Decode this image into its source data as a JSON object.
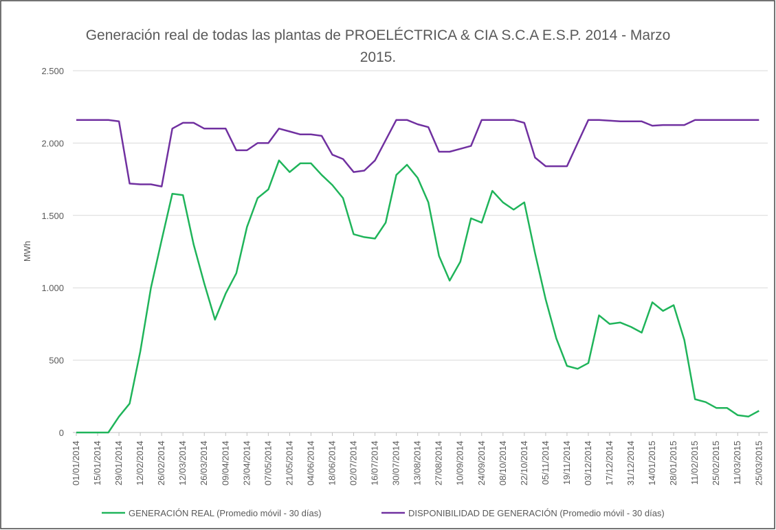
{
  "chart_data": {
    "type": "line",
    "title": "Generación real de todas las plantas de PROELÉCTRICA & CIA S.C.A E.S.P. 2014 - Marzo 2015.",
    "y_label": "MWh",
    "categories": [
      "01/01/2014",
      null,
      "15/01/2014",
      null,
      "29/01/2014",
      null,
      "12/02/2014",
      null,
      "26/02/2014",
      null,
      "12/03/2014",
      null,
      "26/03/2014",
      null,
      "09/04/2014",
      null,
      "23/04/2014",
      null,
      "07/05/2014",
      null,
      "21/05/2014",
      null,
      "04/06/2014",
      null,
      "18/06/2014",
      null,
      "02/07/2014",
      null,
      "16/07/2014",
      null,
      "30/07/2014",
      null,
      "13/08/2014",
      null,
      "27/08/2014",
      null,
      "10/09/2014",
      null,
      "24/09/2014",
      null,
      "08/10/2014",
      null,
      "22/10/2014",
      null,
      "05/11/2014",
      null,
      "19/11/2014",
      null,
      "03/12/2014",
      null,
      "17/12/2014",
      null,
      "31/12/2014",
      null,
      "14/01/2015",
      null,
      "28/01/2015",
      null,
      "11/02/2015",
      null,
      "25/02/2015",
      null,
      "11/03/2015",
      null,
      "25/03/2015"
    ],
    "series": [
      {
        "name": "GENERACIÓN REAL (Promedio móvil - 30 días)",
        "color": "#1fb45a",
        "values": [
          0,
          0,
          0,
          0,
          110,
          200,
          560,
          1000,
          1330,
          1650,
          1640,
          1300,
          1030,
          780,
          960,
          1100,
          1420,
          1620,
          1680,
          1880,
          1800,
          1860,
          1860,
          1780,
          1710,
          1620,
          1370,
          1350,
          1340,
          1450,
          1780,
          1850,
          1760,
          1590,
          1220,
          1050,
          1180,
          1480,
          1450,
          1670,
          1590,
          1540,
          1590,
          1240,
          920,
          650,
          460,
          440,
          480,
          810,
          750,
          760,
          730,
          690,
          900,
          840,
          880,
          640,
          230,
          210,
          170,
          170,
          120,
          110,
          150
        ]
      },
      {
        "name": "DISPONIBILIDAD DE GENERACIÓN (Promedio móvil - 30 días)",
        "color": "#7030a0",
        "values": [
          2160,
          2160,
          2160,
          2160,
          2150,
          1720,
          1715,
          1715,
          1700,
          2100,
          2140,
          2140,
          2100,
          2100,
          2100,
          1950,
          1950,
          2000,
          2000,
          2100,
          2080,
          2060,
          2060,
          2050,
          1920,
          1890,
          1800,
          1810,
          1880,
          2020,
          2160,
          2160,
          2130,
          2110,
          1940,
          1940,
          1960,
          1980,
          2160,
          2160,
          2160,
          2160,
          2140,
          1900,
          1840,
          1840,
          1840,
          2000,
          2160,
          2160,
          2155,
          2150,
          2150,
          2150,
          2120,
          2125,
          2125,
          2125,
          2160,
          2160,
          2160,
          2160,
          2160,
          2160,
          2160
        ]
      }
    ],
    "ylim": [
      0,
      2500
    ],
    "yticks": [
      0,
      500,
      {
        "value": 1000,
        "label": "1.000"
      },
      {
        "value": 1500,
        "label": "1.500"
      },
      {
        "value": 2000,
        "label": "2.000"
      },
      {
        "value": 2500,
        "label": "2.500"
      }
    ],
    "grid": true,
    "legend": "bottom"
  }
}
